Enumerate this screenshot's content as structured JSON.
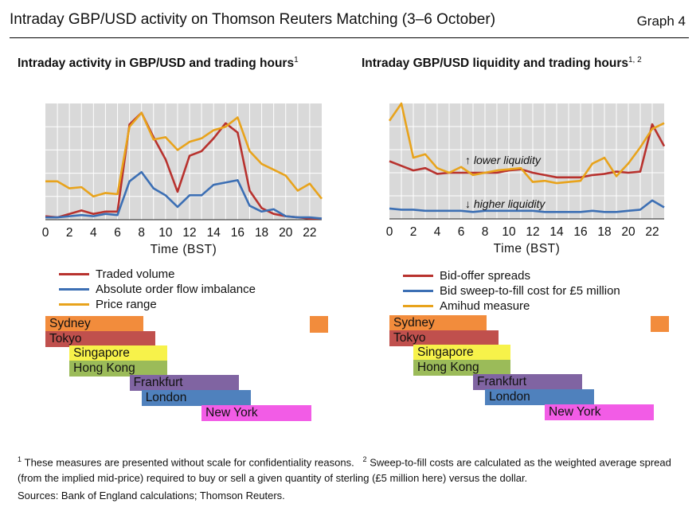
{
  "header": {
    "title": "Intraday GBP/USD activity on Thomson Reuters Matching (3–6 October)",
    "graph_label": "Graph 4"
  },
  "left": {
    "subtitle": "Intraday activity in GBP/USD and trading hours",
    "subtitle_sup": "1",
    "legend": [
      "Traded volume",
      "Absolute order flow imbalance",
      "Price range"
    ]
  },
  "right": {
    "subtitle": "Intraday GBP/USD liquidity and trading hours",
    "subtitle_sup": "1, 2",
    "legend": [
      "Bid-offer spreads",
      "Bid sweep-to-fill cost for £5 million",
      "Amihud measure"
    ],
    "annotation_up": "↑ lower liquidity",
    "annotation_down": "↓ higher liquidity"
  },
  "sessions": [
    {
      "name": "Sydney",
      "start": 0,
      "end": 8,
      "color": "#f28c3c"
    },
    {
      "name": "Tokyo",
      "start": 0,
      "end": 9,
      "color": "#c0504d"
    },
    {
      "name": "Singapore",
      "start": 2,
      "end": 10,
      "color": "#f7f24a"
    },
    {
      "name": "Hong Kong",
      "start": 2,
      "end": 10,
      "color": "#9bbb59"
    },
    {
      "name": "Frankfurt",
      "start": 7,
      "end": 16,
      "color": "#8064a2"
    },
    {
      "name": "London",
      "start": 8,
      "end": 17,
      "color": "#4f81bd"
    },
    {
      "name": "New York",
      "start": 13,
      "end": 22,
      "color": "#f25ce6"
    }
  ],
  "colors": {
    "red": "#b8322e",
    "blue": "#3c6fb4",
    "orange": "#e8a31c",
    "plot_bg": "#d9d9d9",
    "grid": "#ffffff"
  },
  "footnotes": {
    "note1_mark": "1",
    "note1": "These measures are presented without scale for confidentiality reasons.",
    "note2_mark": "2",
    "note2": "Sweep-to-fill costs are calculated as the weighted average spread (from the implied mid-price) required to buy or sell a given quantity of sterling (£5 million here) versus the dollar.",
    "sources": "Sources: Bank of England calculations; Thomson Reuters."
  },
  "chart_data": [
    {
      "type": "line",
      "title": "Intraday activity in GBP/USD and trading hours",
      "xlabel": "Time (BST)",
      "ylabel": "",
      "x": [
        0,
        1,
        2,
        3,
        4,
        5,
        6,
        7,
        8,
        9,
        10,
        11,
        12,
        13,
        14,
        15,
        16,
        17,
        18,
        19,
        20,
        21,
        22,
        23
      ],
      "xticks": [
        0,
        2,
        4,
        6,
        8,
        10,
        12,
        14,
        16,
        18,
        20,
        22
      ],
      "ylim": [
        0,
        100
      ],
      "series": [
        {
          "name": "Traded volume",
          "color": "#b8322e",
          "values": [
            3,
            2,
            5,
            8,
            5,
            7,
            7,
            82,
            92,
            71,
            52,
            24,
            55,
            59,
            70,
            83,
            75,
            25,
            10,
            5,
            3,
            2,
            1,
            1
          ]
        },
        {
          "name": "Absolute order flow imbalance",
          "color": "#3c6fb4",
          "values": [
            2,
            2,
            3,
            4,
            3,
            5,
            4,
            33,
            41,
            27,
            21,
            11,
            21,
            21,
            30,
            32,
            34,
            12,
            7,
            9,
            3,
            2,
            2,
            1
          ]
        },
        {
          "name": "Price range",
          "color": "#e8a31c",
          "values": [
            33,
            33,
            27,
            28,
            20,
            23,
            22,
            80,
            92,
            69,
            71,
            60,
            67,
            70,
            77,
            80,
            88,
            59,
            48,
            43,
            38,
            25,
            31,
            18
          ]
        }
      ]
    },
    {
      "type": "line",
      "title": "Intraday GBP/USD liquidity and trading hours",
      "xlabel": "Time (BST)",
      "ylabel": "",
      "x": [
        0,
        1,
        2,
        3,
        4,
        5,
        6,
        7,
        8,
        9,
        10,
        11,
        12,
        13,
        14,
        15,
        16,
        17,
        18,
        19,
        20,
        21,
        22,
        23
      ],
      "xticks": [
        0,
        2,
        4,
        6,
        8,
        10,
        12,
        14,
        16,
        18,
        20,
        22
      ],
      "ylim": [
        0,
        100
      ],
      "annotations": [
        "↑ lower liquidity",
        "↓ higher liquidity"
      ],
      "series": [
        {
          "name": "Bid-offer spreads",
          "color": "#b8322e",
          "values": [
            50,
            46,
            42,
            44,
            39,
            40,
            40,
            40,
            40,
            40,
            42,
            43,
            40,
            38,
            36,
            36,
            36,
            38,
            39,
            41,
            40,
            41,
            82,
            63
          ]
        },
        {
          "name": "Bid sweep-to-fill cost for £5 million",
          "color": "#3c6fb4",
          "values": [
            9,
            8,
            8,
            7,
            7,
            7,
            7,
            6,
            7,
            7,
            7,
            7,
            7,
            6,
            6,
            6,
            6,
            7,
            6,
            6,
            7,
            8,
            16,
            10
          ]
        },
        {
          "name": "Amihud measure",
          "color": "#e8a31c",
          "values": [
            85,
            100,
            53,
            56,
            44,
            40,
            45,
            38,
            40,
            42,
            43,
            44,
            32,
            33,
            31,
            32,
            33,
            48,
            53,
            37,
            48,
            62,
            78,
            83
          ]
        }
      ]
    }
  ]
}
